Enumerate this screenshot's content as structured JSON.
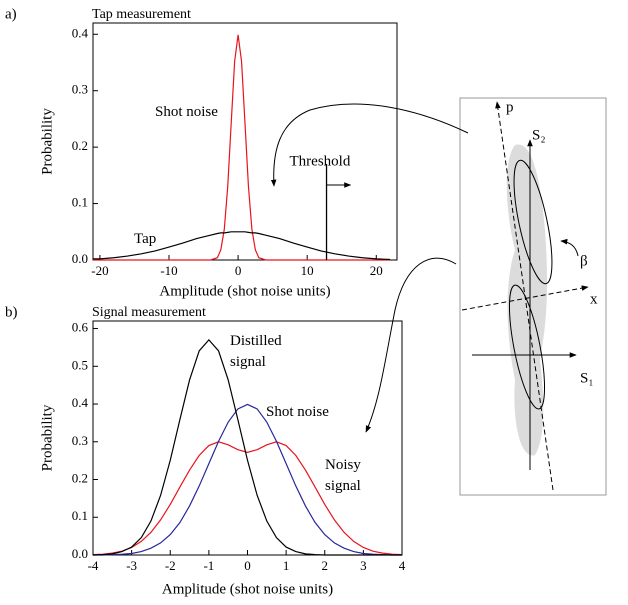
{
  "chart_data": [
    {
      "type": "line",
      "panel_label": "a)",
      "title": "Tap measurement",
      "x_label": "Amplitude (shot noise units)",
      "y_label": "Probability",
      "x": [
        -21,
        -20,
        -18,
        -16,
        -14,
        -12,
        -10,
        -8,
        -6,
        -4,
        -3,
        -2.5,
        -2,
        -1.5,
        -1,
        -0.5,
        0,
        0.5,
        1,
        1.5,
        2,
        2.5,
        3,
        4,
        6,
        8,
        10,
        12,
        14,
        16,
        18,
        20,
        22
      ],
      "series": [
        {
          "name": "Shot noise",
          "color": "#e8141c",
          "values": [
            0,
            0,
            0,
            0,
            0,
            0,
            0,
            0,
            0,
            0,
            0.004,
            0.018,
            0.054,
            0.13,
            0.242,
            0.352,
            0.399,
            0.352,
            0.242,
            0.13,
            0.054,
            0.018,
            0.004,
            0,
            0,
            0,
            0,
            0,
            0,
            0,
            0,
            0,
            0
          ]
        },
        {
          "name": "Tap",
          "color": "#000000",
          "values": [
            0.002,
            0.002,
            0.004,
            0.007,
            0.011,
            0.016,
            0.023,
            0.03,
            0.038,
            0.044,
            0.047,
            0.048,
            0.048,
            0.049,
            0.05,
            0.05,
            0.05,
            0.05,
            0.05,
            0.049,
            0.048,
            0.048,
            0.047,
            0.044,
            0.038,
            0.03,
            0.023,
            0.016,
            0.011,
            0.007,
            0.004,
            0.002,
            0.001
          ]
        }
      ],
      "xlim": [
        -21,
        23
      ],
      "xticks": [
        -20,
        -10,
        0,
        10,
        20
      ],
      "ylim": [
        0,
        0.42
      ],
      "yticks": [
        {
          "value": 0,
          "label": "0.0"
        },
        0.1,
        0.2,
        0.3,
        0.4
      ],
      "threshold": {
        "label": "Threshold",
        "value": 12.8
      }
    },
    {
      "type": "line",
      "panel_label": "b)",
      "title": "Signal measurement",
      "x_label": "Amplitude (shot noise units)",
      "y_label": "Probability",
      "x": [
        -4,
        -3.75,
        -3.5,
        -3.25,
        -3,
        -2.75,
        -2.5,
        -2.25,
        -2,
        -1.75,
        -1.5,
        -1.25,
        -1,
        -0.75,
        -0.5,
        -0.25,
        0,
        0.25,
        0.5,
        0.75,
        1,
        1.25,
        1.5,
        1.75,
        2,
        2.25,
        2.5,
        2.75,
        3,
        3.25,
        3.5,
        3.75,
        4
      ],
      "series": [
        {
          "name": "Noisy signal",
          "color": "#e8141c",
          "values": [
            0.001,
            0.002,
            0.005,
            0.01,
            0.02,
            0.036,
            0.06,
            0.093,
            0.134,
            0.18,
            0.225,
            0.264,
            0.29,
            0.3,
            0.292,
            0.279,
            0.272,
            0.279,
            0.292,
            0.3,
            0.29,
            0.264,
            0.225,
            0.18,
            0.134,
            0.093,
            0.06,
            0.036,
            0.02,
            0.01,
            0.005,
            0.002,
            0.001
          ]
        },
        {
          "name": "Shot noise",
          "color": "#27279a",
          "values": [
            0,
            0,
            0.001,
            0.002,
            0.004,
            0.009,
            0.018,
            0.032,
            0.054,
            0.086,
            0.13,
            0.183,
            0.242,
            0.301,
            0.352,
            0.387,
            0.399,
            0.387,
            0.352,
            0.301,
            0.242,
            0.183,
            0.13,
            0.086,
            0.054,
            0.032,
            0.018,
            0.009,
            0.004,
            0.002,
            0.001,
            0,
            0
          ]
        },
        {
          "name": "Distilled signal",
          "color": "#000000",
          "values": [
            0,
            0.001,
            0.003,
            0.009,
            0.021,
            0.046,
            0.09,
            0.158,
            0.251,
            0.359,
            0.464,
            0.541,
            0.57,
            0.541,
            0.464,
            0.359,
            0.251,
            0.158,
            0.09,
            0.046,
            0.021,
            0.009,
            0.003,
            0.001,
            0,
            0,
            0,
            0,
            0,
            0,
            0,
            0,
            0
          ]
        }
      ],
      "xlim": [
        -4,
        4
      ],
      "xticks": [
        -4,
        -3,
        -2,
        -1,
        0,
        1,
        2,
        3,
        4
      ],
      "ylim": [
        0,
        0.62
      ],
      "yticks": [
        {
          "value": 0,
          "label": "0.0"
        },
        0.1,
        0.2,
        0.3,
        0.4,
        0.5,
        0.6
      ]
    }
  ],
  "diagram": {
    "labels": {
      "p": "p",
      "x": "x",
      "s2": "S₂",
      "s1": "S₁",
      "beta": "β"
    }
  }
}
